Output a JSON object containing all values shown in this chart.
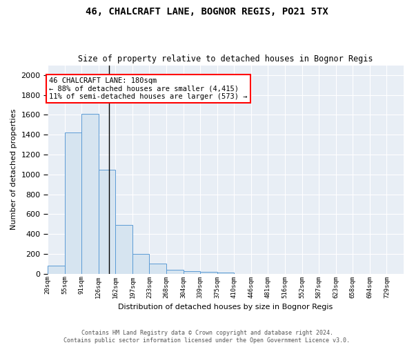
{
  "title": "46, CHALCRAFT LANE, BOGNOR REGIS, PO21 5TX",
  "subtitle": "Size of property relative to detached houses in Bognor Regis",
  "xlabel": "Distribution of detached houses by size in Bognor Regis",
  "ylabel": "Number of detached properties",
  "bar_color": "#d6e4f0",
  "bar_edge_color": "#5b9bd5",
  "bg_color": "#e8eef5",
  "grid_color": "#ffffff",
  "categories": [
    "20sqm",
    "55sqm",
    "91sqm",
    "126sqm",
    "162sqm",
    "197sqm",
    "233sqm",
    "268sqm",
    "304sqm",
    "339sqm",
    "375sqm",
    "410sqm",
    "446sqm",
    "481sqm",
    "516sqm",
    "552sqm",
    "587sqm",
    "623sqm",
    "658sqm",
    "694sqm",
    "729sqm"
  ],
  "bar_values": [
    80,
    1420,
    1610,
    1050,
    490,
    200,
    105,
    40,
    25,
    15,
    10,
    0,
    0,
    0,
    0,
    0,
    0,
    0,
    0,
    0
  ],
  "annotation_text": "46 CHALCRAFT LANE: 180sqm\n← 88% of detached houses are smaller (4,415)\n11% of semi-detached houses are larger (573) →",
  "vline_x_idx": 3.6,
  "ylim": [
    0,
    2100
  ],
  "yticks": [
    0,
    200,
    400,
    600,
    800,
    1000,
    1200,
    1400,
    1600,
    1800,
    2000
  ],
  "footnote_line1": "Contains HM Land Registry data © Crown copyright and database right 2024.",
  "footnote_line2": "Contains public sector information licensed under the Open Government Licence v3.0."
}
